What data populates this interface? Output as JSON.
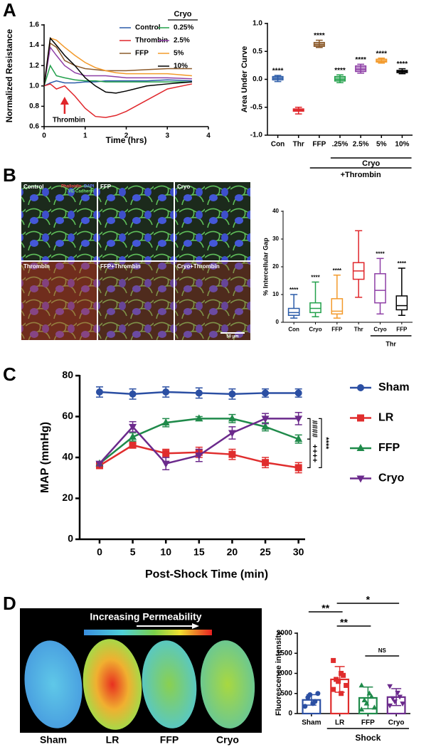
{
  "panel_labels": [
    "A",
    "B",
    "C",
    "D"
  ],
  "micrographs": {
    "labels": [
      "Control",
      "FFP",
      "Cryo",
      "Thrombin",
      "FFP+Thrombin",
      "Cryo+Thrombin"
    ],
    "stains": [
      "Phalloidin",
      "DAPI",
      "VE-Cadherin"
    ],
    "scale_bar": "50 µm"
  },
  "kidneys": {
    "title": "Increasing Permeability",
    "labels": [
      "Sham",
      "LR",
      "FFP",
      "Cryo"
    ]
  },
  "chart_data": [
    {
      "type": "line",
      "xlabel": "Time (hrs)",
      "ylabel": "Normalized Resistance",
      "annotation": "Thrombin",
      "legend": "top-right",
      "legend_title": "Cryo",
      "x": [
        0,
        0.15,
        0.3,
        0.5,
        0.75,
        1,
        1.25,
        1.5,
        1.75,
        2,
        2.5,
        3,
        3.6
      ],
      "xlim": [
        0,
        4
      ],
      "xticks": [
        0,
        1,
        2,
        3,
        4
      ],
      "ylim": [
        0.6,
        1.6
      ],
      "yticks": [
        0.6,
        0.8,
        {
          "value": 1,
          "label": "1.0"
        },
        1.2,
        1.4,
        1.6
      ],
      "series": [
        {
          "name": "Control",
          "color": "#2a5ba8",
          "values": [
            1.0,
            1.03,
            1.05,
            1.03,
            1.03,
            1.04,
            1.04,
            1.05,
            1.05,
            1.05,
            1.05,
            1.06,
            1.05
          ]
        },
        {
          "name": "Thrombin",
          "color": "#e0262b",
          "values": [
            1.0,
            1.02,
            0.97,
            1.0,
            0.9,
            0.78,
            0.7,
            0.69,
            0.71,
            0.75,
            0.86,
            0.97,
            1.02
          ]
        },
        {
          "name": "FFP",
          "color": "#8b5a2b",
          "values": [
            1.0,
            1.42,
            1.38,
            1.25,
            1.2,
            1.17,
            1.16,
            1.15,
            1.15,
            1.15,
            1.16,
            1.17,
            1.17
          ]
        },
        {
          "name": "0.25%",
          "color": "#22a04b",
          "values": [
            1.0,
            1.2,
            1.1,
            1.08,
            1.06,
            1.05,
            1.05,
            1.04,
            1.04,
            1.04,
            1.04,
            1.04,
            1.04
          ]
        },
        {
          "name": "2.5%",
          "color": "#8e3fa6",
          "values": [
            1.0,
            1.38,
            1.3,
            1.2,
            1.13,
            1.1,
            1.1,
            1.1,
            1.09,
            1.08,
            1.08,
            1.08,
            1.07
          ]
        },
        {
          "name": "5%",
          "color": "#f39a2b",
          "values": [
            1.0,
            1.47,
            1.45,
            1.38,
            1.3,
            1.23,
            1.18,
            1.15,
            1.13,
            1.12,
            1.12,
            1.12,
            1.1
          ]
        },
        {
          "name": "10%",
          "color": "#000000",
          "values": [
            1.0,
            1.47,
            1.4,
            1.3,
            1.2,
            1.08,
            1.0,
            0.94,
            0.93,
            0.95,
            1.0,
            1.02,
            1.04
          ]
        }
      ]
    },
    {
      "type": "box",
      "ylabel": "Area Under Curve",
      "box_fill": true,
      "categories": [
        "Con",
        "Thr",
        "FFP",
        ".25%",
        "2.5%",
        "5%",
        "10%"
      ],
      "colors": [
        "#2a5ba8",
        "#e0262b",
        "#8b5a2b",
        "#22a04b",
        "#8e3fa6",
        "#f39a2b",
        "#000000"
      ],
      "ylim": [
        -1,
        1
      ],
      "yticks": [
        {
          "value": -1,
          "label": "-1.0"
        },
        -0.5,
        {
          "value": 0,
          "label": "0.0"
        },
        0.5,
        {
          "value": 1,
          "label": "1.0"
        }
      ],
      "boxes": [
        {
          "min": -0.04,
          "q1": -0.01,
          "median": 0.02,
          "q3": 0.05,
          "max": 0.07
        },
        {
          "min": -0.62,
          "q1": -0.57,
          "median": -0.55,
          "q3": -0.53,
          "max": -0.5
        },
        {
          "min": 0.57,
          "q1": 0.59,
          "median": 0.62,
          "q3": 0.66,
          "max": 0.7
        },
        {
          "min": -0.06,
          "q1": -0.03,
          "median": 0.0,
          "q3": 0.05,
          "max": 0.08
        },
        {
          "min": 0.11,
          "q1": 0.14,
          "median": 0.18,
          "q3": 0.24,
          "max": 0.27
        },
        {
          "min": 0.29,
          "q1": 0.31,
          "median": 0.33,
          "q3": 0.36,
          "max": 0.38
        },
        {
          "min": 0.1,
          "q1": 0.12,
          "median": 0.14,
          "q3": 0.16,
          "max": 0.19
        }
      ],
      "labels": [
        "****",
        null,
        "****",
        "****",
        "****",
        "****",
        "****"
      ],
      "groups": [
        {
          "label": "Cryo",
          "from": 3,
          "to": 6
        },
        {
          "label": "+Thrombin",
          "from": 2,
          "to": 6
        }
      ]
    },
    {
      "type": "box",
      "ylabel": "% Intercellular Gap",
      "box_fill": false,
      "categories": [
        "Con",
        "Cryo",
        "FFP",
        "Thr",
        "Cryo",
        "FFP"
      ],
      "colors": [
        "#2a5ba8",
        "#22a04b",
        "#f39a2b",
        "#e0262b",
        "#8e3fa6",
        "#000000"
      ],
      "ylim": [
        0,
        40
      ],
      "yticks": [
        0,
        10,
        20,
        30,
        40
      ],
      "boxes": [
        {
          "min": 1.5,
          "q1": 2.5,
          "median": 3.5,
          "q3": 5,
          "max": 10
        },
        {
          "min": 2,
          "q1": 3.5,
          "median": 5,
          "q3": 7,
          "max": 14.5
        },
        {
          "min": 1.5,
          "q1": 3,
          "median": 4,
          "q3": 8.5,
          "max": 17
        },
        {
          "min": 9,
          "q1": 15.5,
          "median": 18.5,
          "q3": 21.5,
          "max": 33
        },
        {
          "min": 3,
          "q1": 7,
          "median": 11.5,
          "q3": 17.5,
          "max": 23
        },
        {
          "min": 2.5,
          "q1": 4.5,
          "median": 6,
          "q3": 9.5,
          "max": 19.5
        }
      ],
      "labels": [
        "****",
        "****",
        "****",
        null,
        "****",
        "****"
      ],
      "groups": [
        {
          "label": "Thr",
          "from": 4,
          "to": 5
        }
      ]
    },
    {
      "type": "line",
      "xlabel": "Post-Shock Time (min)",
      "ylabel": "MAP  (mmHg)",
      "legend": "outside-right",
      "x": [
        0,
        5,
        10,
        15,
        20,
        25,
        30
      ],
      "xlim": [
        -3,
        31
      ],
      "xticks": [
        0,
        5,
        10,
        15,
        20,
        25,
        30
      ],
      "ylim": [
        0,
        80
      ],
      "yticks": [
        0,
        20,
        40,
        60,
        80
      ],
      "series": [
        {
          "name": "Sham",
          "color": "#2b4fa3",
          "marker": "circle",
          "values": [
            72,
            71,
            72,
            71.5,
            71,
            71.5,
            71.5
          ],
          "errors": [
            2.5,
            2.5,
            2.5,
            2.5,
            2.5,
            2,
            2
          ]
        },
        {
          "name": "LR",
          "color": "#e02d2d",
          "marker": "square",
          "values": [
            36,
            46,
            42,
            42.5,
            41.5,
            37.5,
            35
          ],
          "errors": [
            1,
            1,
            2,
            2.5,
            2.5,
            2.5,
            2.5
          ]
        },
        {
          "name": "FFP",
          "color": "#1f8a4a",
          "marker": "triangle-up",
          "values": [
            37,
            50,
            57,
            59,
            59,
            55,
            49
          ],
          "errors": [
            1,
            2,
            2,
            1,
            2,
            2,
            2
          ]
        },
        {
          "name": "Cryo",
          "color": "#6b2a8c",
          "marker": "triangle-down",
          "values": [
            37,
            55,
            37,
            41,
            52,
            59,
            59
          ],
          "errors": [
            1,
            2.5,
            3,
            3,
            3,
            2.5,
            3
          ]
        }
      ],
      "comparisons": [
        {
          "text": "####",
          "series": [
            2,
            3
          ]
        },
        {
          "text": "++++",
          "series": [
            1,
            2
          ]
        },
        {
          "text": "****",
          "series": [
            1,
            3
          ]
        }
      ]
    },
    {
      "type": "bar",
      "ylabel": "Fluorescence intensity",
      "categories": [
        "Sham",
        "LR",
        "FFP",
        "Cryo"
      ],
      "colors": [
        "#2b4fa3",
        "#e02d2d",
        "#1f8a4a",
        "#6b2a8c"
      ],
      "markers": [
        "circle",
        "square",
        "triangle-up",
        "triangle-down"
      ],
      "ylim": [
        0,
        2000
      ],
      "yticks": [
        0,
        500,
        1000,
        1500,
        2000
      ],
      "values": [
        340,
        850,
        390,
        410
      ],
      "errors": [
        130,
        320,
        270,
        210
      ],
      "points": [
        [
          180,
          250,
          300,
          400,
          470,
          500
        ],
        [
          1320,
          1000,
          950,
          850,
          800,
          700,
          600,
          500
        ],
        [
          700,
          500,
          420,
          330,
          250,
          150,
          100
        ],
        [
          680,
          520,
          420,
          380,
          300,
          250,
          200
        ]
      ],
      "comparisons": [
        {
          "text": "**",
          "from": 0,
          "to": 1
        },
        {
          "text": "**",
          "from": 1,
          "to": 2
        },
        {
          "text": "*",
          "from": 1,
          "to": 3
        },
        {
          "text": "NS",
          "from": 2,
          "to": 3
        }
      ],
      "groups": [
        {
          "label": "Shock",
          "from": 1,
          "to": 3
        }
      ]
    }
  ]
}
